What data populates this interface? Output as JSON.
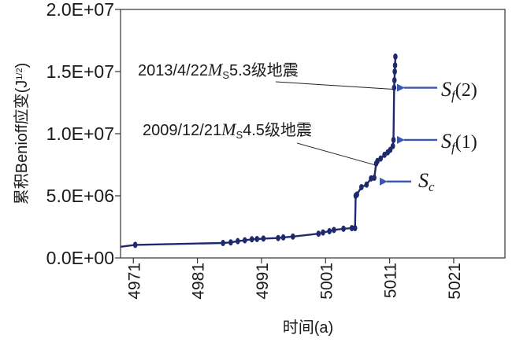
{
  "chart_data": {
    "type": "line",
    "title": "",
    "xlabel": "时间(a)",
    "ylabel": "累积Benioff应变(J",
    "ylabel_sup": "1/2",
    "ylabel_close": ")",
    "xlim": [
      4969,
      5029
    ],
    "ylim": [
      0,
      20000000
    ],
    "xticks": [
      4971,
      4981,
      4991,
      5001,
      5011,
      5021
    ],
    "xtick_labels": [
      "4971",
      "4981",
      "4991",
      "5001",
      "5011",
      "5021"
    ],
    "yticks": [
      0,
      5000000,
      10000000,
      15000000,
      20000000
    ],
    "ytick_labels": [
      "0.0E+00",
      "5.0E+06",
      "1.0E+07",
      "1.5E+07",
      "2.0E+07"
    ],
    "grid": false,
    "series": [
      {
        "name": "累积Benioff应变",
        "color": "#1f2a6e",
        "x": [
          4969,
          4971.3,
          4985,
          4986.2,
          4987.3,
          4988.4,
          4989.5,
          4990.3,
          4991.3,
          4993.6,
          4994.4,
          4995.9,
          4999.9,
          5000.6,
          5001.6,
          5002.3,
          5003.8,
          5005.1,
          5005.6,
          5005.7,
          5005.9,
          5006.6,
          5007.4,
          5008.1,
          5008.6,
          5008.9,
          5009.1,
          5009.6,
          5010.2,
          5010.7,
          5011.1,
          5011.5,
          5011.6,
          5011.7,
          5011.75,
          5011.8,
          5011.85,
          5011.9
        ],
        "y": [
          900000,
          1050000,
          1200000,
          1250000,
          1350000,
          1420000,
          1500000,
          1520000,
          1560000,
          1600000,
          1650000,
          1720000,
          1950000,
          2050000,
          2150000,
          2250000,
          2350000,
          2400000,
          2400000,
          5000000,
          5100000,
          5700000,
          5900000,
          6400000,
          6450000,
          7600000,
          7800000,
          8000000,
          8300000,
          8500000,
          8700000,
          9000000,
          9500000,
          13700000,
          14300000,
          15000000,
          15500000,
          16200000
        ]
      }
    ],
    "annotations": [
      {
        "date": "2013/4/22",
        "mag_symbol": "M",
        "mag_sub": "S",
        "mag_value": "5.3",
        "suffix": "级地震",
        "target_x": 5011.7,
        "target_y": 13700000
      },
      {
        "date": "2009/12/21",
        "mag_symbol": "M",
        "mag_sub": "S",
        "mag_value": "4.5",
        "suffix": "级地震",
        "target_x": 5008.9,
        "target_y": 7600000
      }
    ],
    "markers": [
      {
        "base": "S",
        "sub": "f",
        "paren": "(2)",
        "target_x": 5011.9,
        "target_y": 13700000
      },
      {
        "base": "S",
        "sub": "f",
        "paren": "(1)",
        "target_x": 5011.9,
        "target_y": 9500000
      },
      {
        "base": "S",
        "sub": "c",
        "paren": "",
        "target_x": 5009.2,
        "target_y": 6400000
      }
    ]
  }
}
